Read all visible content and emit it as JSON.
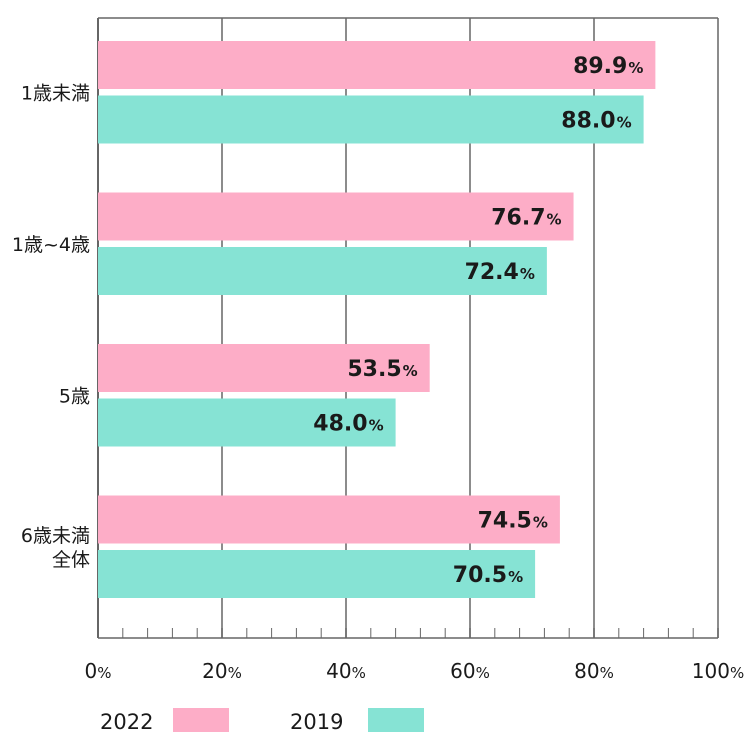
{
  "chart_data": {
    "type": "bar",
    "orientation": "horizontal",
    "categories": [
      [
        "1歳未満"
      ],
      [
        "1歳~4歳"
      ],
      [
        "5歳"
      ],
      [
        "6歳未満",
        "全体"
      ]
    ],
    "series": [
      {
        "name": "2022",
        "color": "#fdadc7",
        "values": [
          89.9,
          76.7,
          53.5,
          74.5
        ]
      },
      {
        "name": "2019",
        "color": "#86e3d4",
        "values": [
          88.0,
          72.4,
          48.0,
          70.5
        ]
      }
    ],
    "value_suffix": "%",
    "xlim": [
      0,
      100
    ],
    "xticks": [
      0,
      20,
      40,
      60,
      80,
      100
    ],
    "grid": true,
    "legend_position": "bottom-left",
    "title": "",
    "xlabel": "",
    "ylabel": ""
  }
}
